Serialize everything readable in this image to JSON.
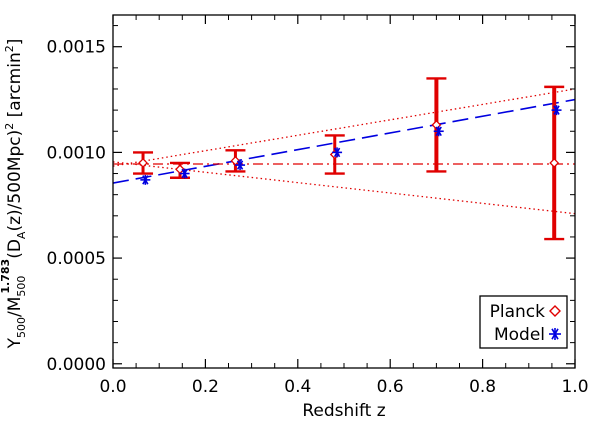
{
  "chart_data": {
    "type": "scatter",
    "xlabel": "Redshift  z",
    "ylabel_parts": {
      "y": "Y",
      "y_sub": "500",
      "slash": "/M",
      "m_sub": "500",
      "m_sup": "1.783",
      "paren_open": "(D",
      "d_sub": "A",
      "tail": "(z)/500Mpc)",
      "sq": "2",
      "unit_open": " [arcmin",
      "unit_sq": "2",
      "unit_close": "]"
    },
    "xlim": [
      0.0,
      1.0
    ],
    "ylim": [
      -2e-05,
      0.00165
    ],
    "x_ticks": [
      0.0,
      0.2,
      0.4,
      0.6,
      0.8,
      1.0
    ],
    "x_tick_labels": [
      "0.0",
      "0.2",
      "0.4",
      "0.6",
      "0.8",
      "1.0"
    ],
    "y_ticks": [
      0.0,
      0.0005,
      0.001,
      0.0015
    ],
    "y_tick_labels": [
      "0.0000",
      "0.0005",
      "0.0010",
      "0.0015"
    ],
    "series": [
      {
        "name": "Planck",
        "color": "#e00000",
        "marker": "diamond",
        "x": [
          0.065,
          0.145,
          0.265,
          0.48,
          0.7,
          0.955
        ],
        "y": [
          0.00095,
          0.00092,
          0.00096,
          0.00099,
          0.00113,
          0.00095
        ],
        "yerr_low": [
          0.0009,
          0.00088,
          0.00091,
          0.0009,
          0.00091,
          0.00059
        ],
        "yerr_high": [
          0.001,
          0.00095,
          0.00101,
          0.00108,
          0.00135,
          0.00131
        ]
      },
      {
        "name": "Model",
        "color": "#0000e0",
        "marker": "asterisk",
        "x": [
          0.07,
          0.155,
          0.275,
          0.485,
          0.705,
          0.96
        ],
        "y": [
          0.00087,
          0.0009,
          0.00094,
          0.001,
          0.0011,
          0.0012
        ]
      }
    ],
    "lines": [
      {
        "name": "dashed-fit",
        "style": "dashed",
        "color": "#0000e0",
        "x": [
          0.0,
          1.0
        ],
        "y": [
          0.000855,
          0.00125
        ]
      },
      {
        "name": "dash-dot-constant",
        "style": "dashdot",
        "color": "#e00000",
        "x": [
          0.0,
          1.0
        ],
        "y": [
          0.000945,
          0.000945
        ]
      },
      {
        "name": "dotted-upper",
        "style": "dotted",
        "color": "#e00000",
        "x": [
          0.0,
          1.0
        ],
        "y": [
          0.000935,
          0.0013
        ]
      },
      {
        "name": "dotted-lower",
        "style": "dotted",
        "color": "#e00000",
        "x": [
          0.0,
          1.0
        ],
        "y": [
          0.000955,
          0.00071
        ]
      }
    ],
    "legend": {
      "position": "bottom-right",
      "entries": [
        {
          "label": "Planck",
          "marker": "diamond",
          "color": "#e00000"
        },
        {
          "label": "Model",
          "marker": "asterisk",
          "color": "#0000e0"
        }
      ]
    }
  }
}
